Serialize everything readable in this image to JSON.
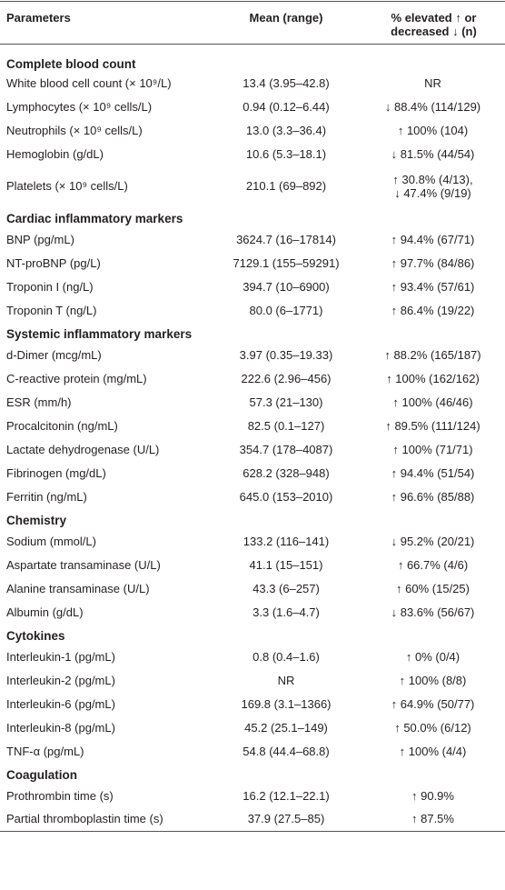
{
  "table": {
    "header": [
      "Parameters",
      "Mean (range)",
      "% elevated ↑ or decreased ↓ (n)"
    ],
    "sections": [
      {
        "title": "Complete blood count",
        "rows": [
          [
            "White blood cell count (× 10⁹/L)",
            "13.4 (3.95–42.8)",
            "NR"
          ],
          [
            "Lymphocytes (× 10⁹ cells/L)",
            "0.94 (0.12–6.44)",
            "↓ 88.4% (114/129)"
          ],
          [
            "Neutrophils (× 10⁹ cells/L)",
            "13.0 (3.3–36.4)",
            "↑ 100% (104)"
          ],
          [
            "Hemoglobin (g/dL)",
            "10.6 (5.3–18.1)",
            "↓ 81.5% (44/54)"
          ],
          [
            "Platelets (× 10⁹ cells/L)",
            "210.1 (69–892)",
            [
              "↑ 30.8% (4/13),",
              "↓ 47.4% (9/19)"
            ]
          ]
        ]
      },
      {
        "title": "Cardiac inflammatory markers",
        "rows": [
          [
            "BNP (pg/mL)",
            "3624.7 (16–17814)",
            "↑ 94.4% (67/71)"
          ],
          [
            "NT-proBNP (pg/L)",
            "7129.1 (155–59291)",
            "↑ 97.7% (84/86)"
          ],
          [
            "Troponin I (ng/L)",
            "394.7 (10–6900)",
            "↑ 93.4% (57/61)"
          ],
          [
            "Troponin T (ng/L)",
            "80.0 (6–1771)",
            "↑ 86.4% (19/22)"
          ]
        ]
      },
      {
        "title": "Systemic inflammatory markers",
        "rows": [
          [
            "d-Dimer (mcg/mL)",
            "3.97 (0.35–19.33)",
            "↑ 88.2% (165/187)"
          ],
          [
            "C-reactive protein (mg/mL)",
            "222.6 (2.96–456)",
            "↑ 100% (162/162)"
          ],
          [
            "ESR (mm/h)",
            "57.3 (21–130)",
            "↑ 100% (46/46)"
          ],
          [
            "Procalcitonin (ng/mL)",
            "82.5 (0.1–127)",
            "↑ 89.5% (111/124)"
          ],
          [
            "Lactate dehydrogenase (U/L)",
            "354.7 (178–4087)",
            "↑ 100% (71/71)"
          ],
          [
            "Fibrinogen (mg/dL)",
            "628.2 (328–948)",
            "↑ 94.4% (51/54)"
          ],
          [
            "Ferritin (ng/mL)",
            "645.0 (153–2010)",
            "↑ 96.6% (85/88)"
          ]
        ]
      },
      {
        "title": "Chemistry",
        "rows": [
          [
            "Sodium (mmol/L)",
            "133.2 (116–141)",
            "↓ 95.2% (20/21)"
          ],
          [
            "Aspartate transaminase (U/L)",
            "41.1 (15–151)",
            "↑ 66.7% (4/6)"
          ],
          [
            "Alanine transaminase (U/L)",
            "43.3 (6–257)",
            "↑ 60% (15/25)"
          ],
          [
            "Albumin (g/dL)",
            "3.3 (1.6–4.7)",
            "↓ 83.6% (56/67)"
          ]
        ]
      },
      {
        "title": "Cytokines",
        "rows": [
          [
            "Interleukin-1 (pg/mL)",
            "0.8 (0.4–1.6)",
            "↑ 0% (0/4)"
          ],
          [
            "Interleukin-2 (pg/mL)",
            "NR",
            "↑ 100% (8/8)"
          ],
          [
            "Interleukin-6 (pg/mL)",
            "169.8 (3.1–1366)",
            "↑ 64.9% (50/77)"
          ],
          [
            "Interleukin-8 (pg/mL)",
            "45.2 (25.1–149)",
            "↑ 50.0% (6/12)"
          ],
          [
            "TNF-α (pg/mL)",
            "54.8 (44.4–68.8)",
            "↑ 100% (4/4)"
          ]
        ]
      },
      {
        "title": "Coagulation",
        "rows": [
          [
            "Prothrombin time (s)",
            "16.2 (12.1–22.1)",
            "↑ 90.9%"
          ],
          [
            "Partial thromboplastin time (s)",
            "37.9 (27.5–85)",
            "↑ 87.5%"
          ]
        ]
      }
    ]
  }
}
